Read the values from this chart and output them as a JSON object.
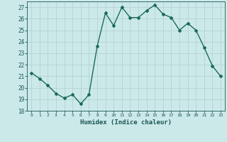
{
  "x": [
    0,
    1,
    2,
    3,
    4,
    5,
    6,
    7,
    8,
    9,
    10,
    11,
    12,
    13,
    14,
    15,
    16,
    17,
    18,
    19,
    20,
    21,
    22,
    23
  ],
  "y": [
    21.3,
    20.8,
    20.2,
    19.5,
    19.1,
    19.4,
    18.6,
    19.4,
    23.6,
    26.5,
    25.4,
    27.0,
    26.1,
    26.1,
    26.7,
    27.2,
    26.4,
    26.1,
    25.0,
    25.6,
    25.0,
    23.5,
    21.9,
    21.0
  ],
  "xlim": [
    -0.5,
    23.5
  ],
  "ylim": [
    18,
    27.5
  ],
  "yticks": [
    18,
    19,
    20,
    21,
    22,
    23,
    24,
    25,
    26,
    27
  ],
  "xticks": [
    0,
    1,
    2,
    3,
    4,
    5,
    6,
    7,
    8,
    9,
    10,
    11,
    12,
    13,
    14,
    15,
    16,
    17,
    18,
    19,
    20,
    21,
    22,
    23
  ],
  "xlabel": "Humidex (Indice chaleur)",
  "line_color": "#1a6b5a",
  "bg_color": "#cce9e9",
  "grid_color": "#b0cfcf",
  "tick_label_color": "#1a5555",
  "xlabel_color": "#1a5555",
  "marker": "D",
  "marker_size": 2.0,
  "line_width": 1.0
}
